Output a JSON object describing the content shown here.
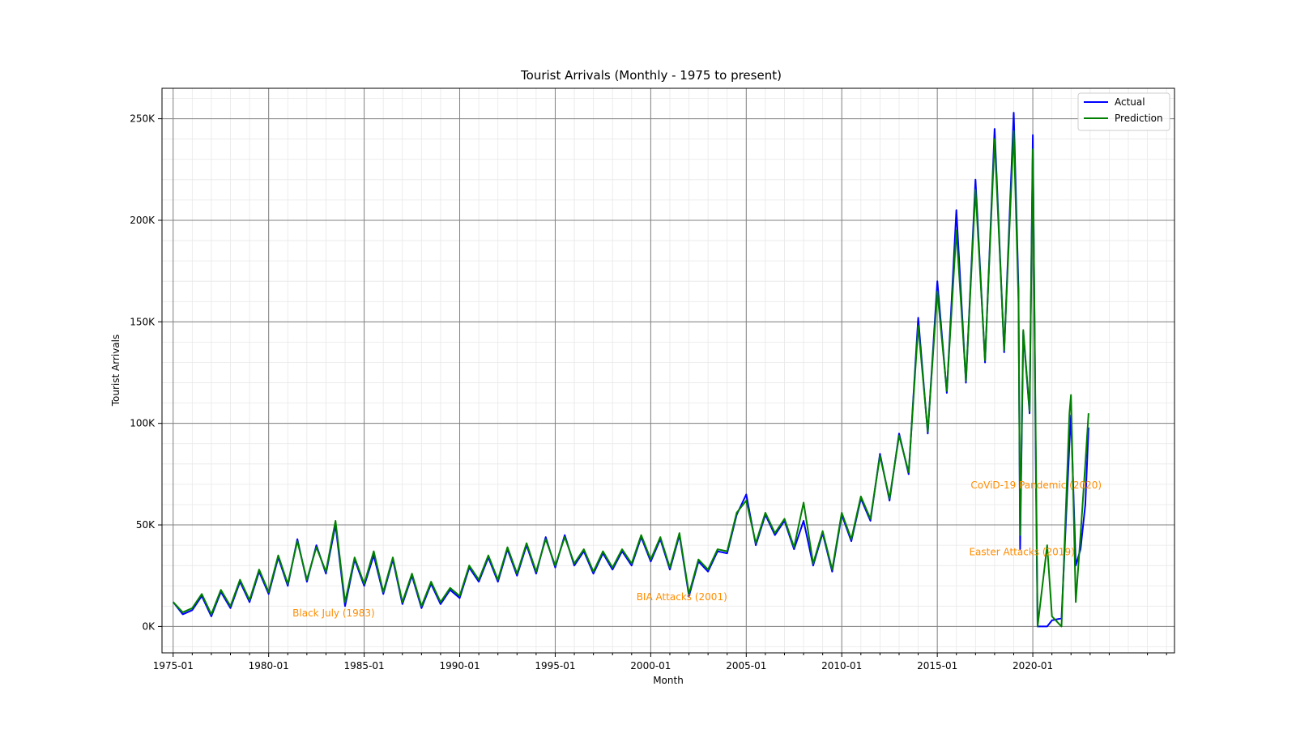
{
  "chart_data": {
    "type": "line",
    "title": "Tourist Arrivals (Monthly - 1975 to present)",
    "xlabel": "Month",
    "ylabel": "Tourist Arrivals",
    "x_range": [
      "1974-06",
      "2027-06"
    ],
    "ylim": [
      -13000,
      265000
    ],
    "x_ticks": [
      {
        "date": "1975-01",
        "label": "1975-01"
      },
      {
        "date": "1980-01",
        "label": "1980-01"
      },
      {
        "date": "1985-01",
        "label": "1985-01"
      },
      {
        "date": "1990-01",
        "label": "1990-01"
      },
      {
        "date": "1995-01",
        "label": "1995-01"
      },
      {
        "date": "2000-01",
        "label": "2000-01"
      },
      {
        "date": "2005-01",
        "label": "2005-01"
      },
      {
        "date": "2010-01",
        "label": "2010-01"
      },
      {
        "date": "2015-01",
        "label": "2015-01"
      },
      {
        "date": "2020-01",
        "label": "2020-01"
      }
    ],
    "y_ticks": [
      {
        "value": 0,
        "label": "0K"
      },
      {
        "value": 50000,
        "label": "50K"
      },
      {
        "value": 100000,
        "label": "100K"
      },
      {
        "value": 150000,
        "label": "150K"
      },
      {
        "value": 200000,
        "label": "200K"
      },
      {
        "value": 250000,
        "label": "250K"
      }
    ],
    "grid": true,
    "legend_position": "top-right",
    "series": [
      {
        "name": "Actual",
        "color": "#0000ff",
        "points": [
          [
            "1975-01",
            12000
          ],
          [
            "1975-07",
            6000
          ],
          [
            "1976-01",
            8000
          ],
          [
            "1976-07",
            15000
          ],
          [
            "1977-01",
            5000
          ],
          [
            "1977-07",
            17000
          ],
          [
            "1978-01",
            9000
          ],
          [
            "1978-07",
            22000
          ],
          [
            "1979-01",
            12000
          ],
          [
            "1979-07",
            27000
          ],
          [
            "1980-01",
            16000
          ],
          [
            "1980-07",
            34000
          ],
          [
            "1981-01",
            20000
          ],
          [
            "1981-07",
            43000
          ],
          [
            "1982-01",
            22000
          ],
          [
            "1982-07",
            40000
          ],
          [
            "1983-01",
            26000
          ],
          [
            "1983-07",
            50000
          ],
          [
            "1984-01",
            10000
          ],
          [
            "1984-07",
            33000
          ],
          [
            "1985-01",
            20000
          ],
          [
            "1985-07",
            35000
          ],
          [
            "1986-01",
            16000
          ],
          [
            "1986-07",
            33000
          ],
          [
            "1987-01",
            11000
          ],
          [
            "1987-07",
            25000
          ],
          [
            "1988-01",
            9000
          ],
          [
            "1988-07",
            21000
          ],
          [
            "1989-01",
            11000
          ],
          [
            "1989-07",
            18000
          ],
          [
            "1990-01",
            14000
          ],
          [
            "1990-07",
            29000
          ],
          [
            "1991-01",
            22000
          ],
          [
            "1991-07",
            34000
          ],
          [
            "1992-01",
            22000
          ],
          [
            "1992-07",
            38000
          ],
          [
            "1993-01",
            25000
          ],
          [
            "1993-07",
            40000
          ],
          [
            "1994-01",
            26000
          ],
          [
            "1994-07",
            44000
          ],
          [
            "1995-01",
            29000
          ],
          [
            "1995-07",
            45000
          ],
          [
            "1996-01",
            30000
          ],
          [
            "1996-07",
            37000
          ],
          [
            "1997-01",
            26000
          ],
          [
            "1997-07",
            36000
          ],
          [
            "1998-01",
            28000
          ],
          [
            "1998-07",
            37000
          ],
          [
            "1999-01",
            30000
          ],
          [
            "1999-07",
            44000
          ],
          [
            "2000-01",
            32000
          ],
          [
            "2000-07",
            43000
          ],
          [
            "2001-01",
            28000
          ],
          [
            "2001-07",
            45000
          ],
          [
            "2002-01",
            15000
          ],
          [
            "2002-07",
            32000
          ],
          [
            "2003-01",
            27000
          ],
          [
            "2003-07",
            37000
          ],
          [
            "2004-01",
            36000
          ],
          [
            "2004-07",
            55000
          ],
          [
            "2005-01",
            65000
          ],
          [
            "2005-07",
            40000
          ],
          [
            "2006-01",
            55000
          ],
          [
            "2006-07",
            45000
          ],
          [
            "2007-01",
            52000
          ],
          [
            "2007-07",
            38000
          ],
          [
            "2008-01",
            52000
          ],
          [
            "2008-07",
            30000
          ],
          [
            "2009-01",
            46000
          ],
          [
            "2009-07",
            27000
          ],
          [
            "2010-01",
            55000
          ],
          [
            "2010-07",
            42000
          ],
          [
            "2011-01",
            63000
          ],
          [
            "2011-07",
            52000
          ],
          [
            "2012-01",
            85000
          ],
          [
            "2012-07",
            62000
          ],
          [
            "2013-01",
            95000
          ],
          [
            "2013-07",
            75000
          ],
          [
            "2014-01",
            152000
          ],
          [
            "2014-07",
            95000
          ],
          [
            "2015-01",
            170000
          ],
          [
            "2015-07",
            115000
          ],
          [
            "2016-01",
            205000
          ],
          [
            "2016-07",
            120000
          ],
          [
            "2017-01",
            220000
          ],
          [
            "2017-07",
            130000
          ],
          [
            "2018-01",
            245000
          ],
          [
            "2018-07",
            135000
          ],
          [
            "2019-01",
            253000
          ],
          [
            "2019-04",
            166000
          ],
          [
            "2019-05",
            38000
          ],
          [
            "2019-07",
            145000
          ],
          [
            "2019-11",
            105000
          ],
          [
            "2020-01",
            242000
          ],
          [
            "2020-03",
            70000
          ],
          [
            "2020-04",
            0
          ],
          [
            "2020-10",
            0
          ],
          [
            "2021-01",
            3000
          ],
          [
            "2021-07",
            4000
          ],
          [
            "2021-12",
            90000
          ],
          [
            "2022-01",
            104000
          ],
          [
            "2022-04",
            30000
          ],
          [
            "2022-07",
            38000
          ],
          [
            "2022-10",
            60000
          ],
          [
            "2022-12",
            98000
          ]
        ]
      },
      {
        "name": "Prediction",
        "color": "#008000",
        "points": [
          [
            "1975-01",
            12000
          ],
          [
            "1975-07",
            7000
          ],
          [
            "1976-01",
            9000
          ],
          [
            "1976-07",
            16000
          ],
          [
            "1977-01",
            6000
          ],
          [
            "1977-07",
            18000
          ],
          [
            "1978-01",
            10000
          ],
          [
            "1978-07",
            23000
          ],
          [
            "1979-01",
            13000
          ],
          [
            "1979-07",
            28000
          ],
          [
            "1980-01",
            17000
          ],
          [
            "1980-07",
            35000
          ],
          [
            "1981-01",
            21000
          ],
          [
            "1981-07",
            42000
          ],
          [
            "1982-01",
            23000
          ],
          [
            "1982-07",
            39000
          ],
          [
            "1983-01",
            27000
          ],
          [
            "1983-07",
            52000
          ],
          [
            "1984-01",
            12000
          ],
          [
            "1984-07",
            34000
          ],
          [
            "1985-01",
            21000
          ],
          [
            "1985-07",
            37000
          ],
          [
            "1986-01",
            17000
          ],
          [
            "1986-07",
            34000
          ],
          [
            "1987-01",
            12000
          ],
          [
            "1987-07",
            26000
          ],
          [
            "1988-01",
            10000
          ],
          [
            "1988-07",
            22000
          ],
          [
            "1989-01",
            12000
          ],
          [
            "1989-07",
            19000
          ],
          [
            "1990-01",
            15000
          ],
          [
            "1990-07",
            30000
          ],
          [
            "1991-01",
            23000
          ],
          [
            "1991-07",
            35000
          ],
          [
            "1992-01",
            23000
          ],
          [
            "1992-07",
            39000
          ],
          [
            "1993-01",
            26000
          ],
          [
            "1993-07",
            41000
          ],
          [
            "1994-01",
            27000
          ],
          [
            "1994-07",
            43000
          ],
          [
            "1995-01",
            30000
          ],
          [
            "1995-07",
            44000
          ],
          [
            "1996-01",
            31000
          ],
          [
            "1996-07",
            38000
          ],
          [
            "1997-01",
            27000
          ],
          [
            "1997-07",
            37000
          ],
          [
            "1998-01",
            29000
          ],
          [
            "1998-07",
            38000
          ],
          [
            "1999-01",
            31000
          ],
          [
            "1999-07",
            45000
          ],
          [
            "2000-01",
            33000
          ],
          [
            "2000-07",
            44000
          ],
          [
            "2001-01",
            29000
          ],
          [
            "2001-07",
            46000
          ],
          [
            "2002-01",
            16000
          ],
          [
            "2002-07",
            33000
          ],
          [
            "2003-01",
            28000
          ],
          [
            "2003-07",
            38000
          ],
          [
            "2004-01",
            37000
          ],
          [
            "2004-07",
            56000
          ],
          [
            "2005-01",
            62000
          ],
          [
            "2005-07",
            41000
          ],
          [
            "2006-01",
            56000
          ],
          [
            "2006-07",
            46000
          ],
          [
            "2007-01",
            53000
          ],
          [
            "2007-07",
            39000
          ],
          [
            "2008-01",
            61000
          ],
          [
            "2008-07",
            31000
          ],
          [
            "2009-01",
            47000
          ],
          [
            "2009-07",
            28000
          ],
          [
            "2010-01",
            56000
          ],
          [
            "2010-07",
            43000
          ],
          [
            "2011-01",
            64000
          ],
          [
            "2011-07",
            53000
          ],
          [
            "2012-01",
            84000
          ],
          [
            "2012-07",
            63000
          ],
          [
            "2013-01",
            94000
          ],
          [
            "2013-07",
            76000
          ],
          [
            "2014-01",
            148000
          ],
          [
            "2014-07",
            96000
          ],
          [
            "2015-01",
            165000
          ],
          [
            "2015-07",
            116000
          ],
          [
            "2016-01",
            195000
          ],
          [
            "2016-07",
            121000
          ],
          [
            "2017-01",
            215000
          ],
          [
            "2017-07",
            131000
          ],
          [
            "2018-01",
            240000
          ],
          [
            "2018-07",
            136000
          ],
          [
            "2019-01",
            244000
          ],
          [
            "2019-04",
            160000
          ],
          [
            "2019-05",
            45000
          ],
          [
            "2019-07",
            146000
          ],
          [
            "2019-11",
            106000
          ],
          [
            "2020-01",
            235000
          ],
          [
            "2020-03",
            80000
          ],
          [
            "2020-04",
            0
          ],
          [
            "2020-10",
            40000
          ],
          [
            "2021-01",
            5000
          ],
          [
            "2021-07",
            0
          ],
          [
            "2021-12",
            105000
          ],
          [
            "2022-01",
            114000
          ],
          [
            "2022-04",
            12000
          ],
          [
            "2022-07",
            45000
          ],
          [
            "2022-10",
            80000
          ],
          [
            "2022-12",
            105000
          ]
        ]
      }
    ],
    "annotations": [
      {
        "text": "Black July (1983)",
        "date": "1981-04",
        "value": 5000
      },
      {
        "text": "BIA Attacks (2001)",
        "date": "1999-04",
        "value": 13000
      },
      {
        "text": "Easter Attacks (2019)",
        "date": "2016-09",
        "value": 35000
      },
      {
        "text": "CoViD-19 Pandemic (2020)",
        "date": "2016-10",
        "value": 68000
      }
    ]
  }
}
